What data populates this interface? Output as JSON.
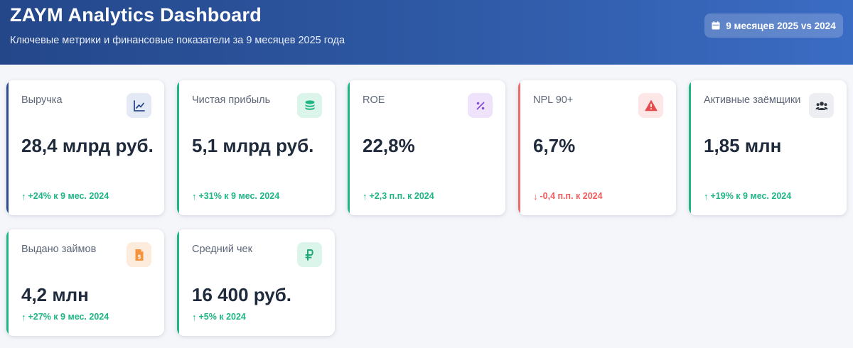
{
  "header": {
    "title": "ZAYM Analytics Dashboard",
    "subtitle": "Ключевые метрики и финансовые показатели за 9 месяцев 2025 года",
    "period_label": "9 месяцев 2025 vs 2024",
    "period_icon": "calendar-icon"
  },
  "colors": {
    "header_start": "#24478a",
    "header_end": "#3b6cc4",
    "positive": "#1fb585",
    "negative": "#ef5a5a",
    "revenue_accent": "#2c4a8e"
  },
  "cards": [
    {
      "label": "Выручка",
      "value": "28,4 млрд руб.",
      "change": "+24% к 9 мес. 2024",
      "trend": "up",
      "icon": "chart-line-icon"
    },
    {
      "label": "Чистая прибыль",
      "value": "5,1 млрд руб.",
      "change": "+31% к 9 мес. 2024",
      "trend": "up",
      "icon": "coins-icon"
    },
    {
      "label": "ROE",
      "value": "22,8%",
      "change": "+2,3 п.п. к 2024",
      "trend": "up",
      "icon": "percent-icon"
    },
    {
      "label": "NPL 90+",
      "value": "6,7%",
      "change": "-0,4 п.п. к 2024",
      "trend": "down",
      "icon": "warning-triangle-icon"
    },
    {
      "label": "Активные заёмщики",
      "value": "1,85 млн",
      "change": "+19% к 9 мес. 2024",
      "trend": "up",
      "icon": "users-icon"
    },
    {
      "label": "Выдано займов",
      "value": "4,2 млн",
      "change": "+27% к 9 мес. 2024",
      "trend": "up",
      "icon": "invoice-dollar-icon"
    },
    {
      "label": "Средний чек",
      "value": "16 400 руб.",
      "change": "+5% к 2024",
      "trend": "up",
      "icon": "ruble-sign-icon"
    }
  ]
}
